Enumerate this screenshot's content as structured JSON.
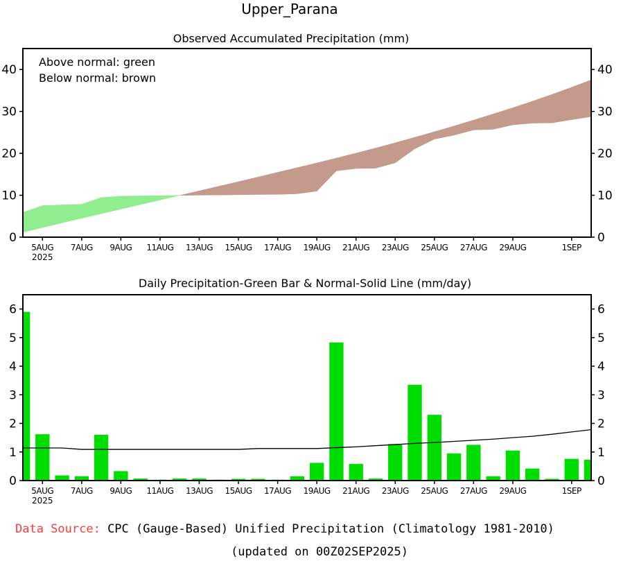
{
  "title": "Upper_Parana",
  "footer": {
    "source_label": "Data Source:",
    "source_text": " CPC (Gauge-Based) Unified Precipitation (Climatology 1981-2010)",
    "updated": "(updated on 00Z02SEP2025)"
  },
  "colors": {
    "above": "#90ee90",
    "below": "#c49a8c",
    "bar": "#00dd00",
    "source_label": "#ff3b3b"
  },
  "chart_data": [
    {
      "type": "area",
      "title": "Observed Accumulated Precipitation (mm)",
      "legend": [
        "Above normal: green",
        "Below normal: brown"
      ],
      "legend_placement": "top-left",
      "ylim": [
        0,
        45
      ],
      "yticks": [
        0,
        10,
        20,
        30,
        40
      ],
      "derived_from": "cumulative sums of daily observed and normal",
      "x_tick_labels": [
        "5AUG",
        "7AUG",
        "9AUG",
        "11AUG",
        "13AUG",
        "15AUG",
        "17AUG",
        "19AUG",
        "21AUG",
        "23AUG",
        "25AUG",
        "27AUG",
        "29AUG",
        "1SEP"
      ],
      "x_tick_year": "2025"
    },
    {
      "type": "bar",
      "title": "Daily Precipitation-Green Bar & Normal-Solid Line (mm/day)",
      "ylim": [
        0,
        6.5
      ],
      "yticks": [
        0,
        1,
        2,
        3,
        4,
        5,
        6
      ],
      "x": [
        "4AUG",
        "5AUG",
        "6AUG",
        "7AUG",
        "8AUG",
        "9AUG",
        "10AUG",
        "11AUG",
        "12AUG",
        "13AUG",
        "14AUG",
        "15AUG",
        "16AUG",
        "17AUG",
        "18AUG",
        "19AUG",
        "20AUG",
        "21AUG",
        "22AUG",
        "23AUG",
        "24AUG",
        "25AUG",
        "26AUG",
        "27AUG",
        "28AUG",
        "29AUG",
        "30AUG",
        "31AUG",
        "1SEP",
        "2SEP"
      ],
      "series": [
        {
          "name": "Observed",
          "type": "bar",
          "values": [
            5.9,
            1.62,
            0.18,
            0.15,
            1.6,
            0.33,
            0.07,
            0.03,
            0.07,
            0.07,
            0.03,
            0.06,
            0.06,
            0.03,
            0.15,
            0.62,
            4.83,
            0.58,
            0.07,
            1.28,
            3.35,
            2.3,
            0.95,
            1.25,
            0.15,
            1.05,
            0.42,
            0.06,
            0.76,
            0.73
          ]
        },
        {
          "name": "Normal",
          "type": "line",
          "values": [
            1.14,
            1.14,
            1.14,
            1.09,
            1.09,
            1.09,
            1.09,
            1.09,
            1.09,
            1.09,
            1.09,
            1.09,
            1.12,
            1.12,
            1.12,
            1.12,
            1.15,
            1.18,
            1.22,
            1.26,
            1.3,
            1.33,
            1.37,
            1.41,
            1.45,
            1.5,
            1.55,
            1.62,
            1.7,
            1.78
          ]
        }
      ],
      "x_tick_labels": [
        "5AUG",
        "7AUG",
        "9AUG",
        "11AUG",
        "13AUG",
        "15AUG",
        "17AUG",
        "19AUG",
        "21AUG",
        "23AUG",
        "25AUG",
        "27AUG",
        "29AUG",
        "1SEP"
      ],
      "x_tick_year": "2025"
    }
  ]
}
